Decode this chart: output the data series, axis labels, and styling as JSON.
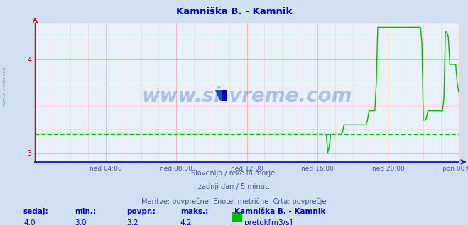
{
  "title": "Kamniška B. - Kamnik",
  "title_color": "#0000cc",
  "bg_color": "#d0e0f0",
  "plot_bg_color": "#e8f0f8",
  "grid_color_major": "#ffaaaa",
  "grid_color_minor": "#ffcccc",
  "line_color": "#00bb00",
  "avg_line_color": "#00bb00",
  "avg_value": 3.2,
  "x_tick_labels": [
    "ned 04:00",
    "ned 08:00",
    "ned 12:00",
    "ned 16:00",
    "ned 20:00",
    "pon 00:00"
  ],
  "x_tick_positions": [
    4,
    8,
    12,
    16,
    20,
    24
  ],
  "xlim": [
    0,
    24
  ],
  "ylim": [
    2.9,
    4.4
  ],
  "yticks": [
    3.0,
    4.0
  ],
  "ylabel_color": "#cc0000",
  "xaxis_color": "#0000cc",
  "watermark": "www.si-vreme.com",
  "sub_text1": "Slovenija / reke in morje.",
  "sub_text2": "zadnji dan / 5 minut.",
  "sub_text3": "Meritve: povprečne  Enote: metrične  Črta: povprečje",
  "footer_color": "#4455aa",
  "sedaj": "4,0",
  "min_val": "3,0",
  "povpr": "3,2",
  "maks": "4,2",
  "legend_label": "pretok[m3/s]",
  "legend_river": "Kamniška B. - Kamnik"
}
